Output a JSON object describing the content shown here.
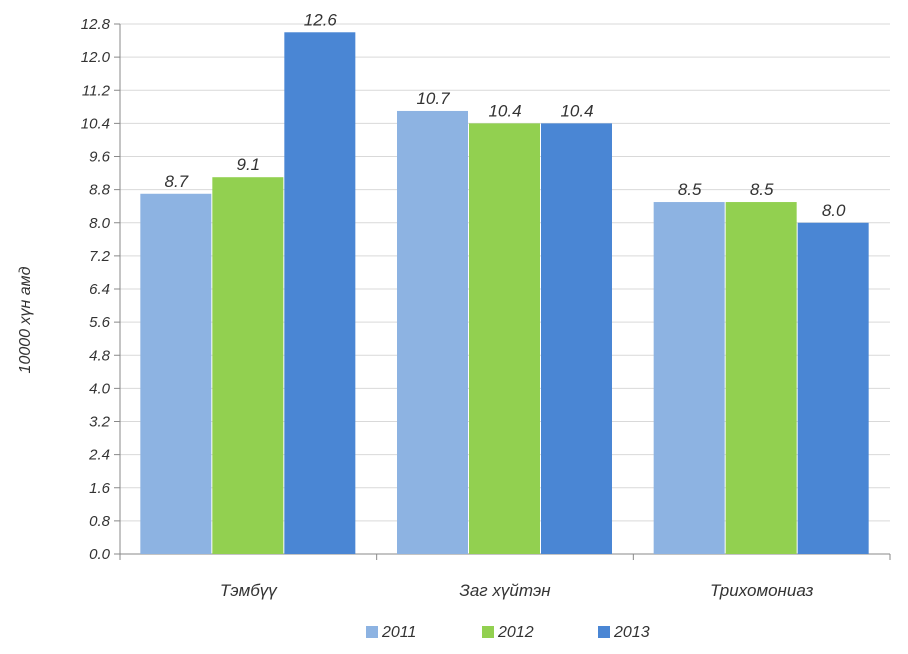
{
  "chart_data": {
    "type": "bar",
    "title": "",
    "xlabel": "",
    "ylabel": "10000 хүн амд",
    "ylim": [
      0,
      12.8
    ],
    "yticks": [
      "0.0",
      "0.8",
      "1.6",
      "2.4",
      "3.2",
      "4.0",
      "4.8",
      "5.6",
      "6.4",
      "7.2",
      "8.0",
      "8.8",
      "9.6",
      "10.4",
      "11.2",
      "12.0",
      "12.8"
    ],
    "grid": true,
    "legend_position": "bottom",
    "categories": [
      "Тэмбүү",
      "Заг хүйтэн",
      "Трихомониаз"
    ],
    "series": [
      {
        "name": "2011",
        "color": "#8DB3E2",
        "values": [
          8.7,
          10.7,
          8.5
        ],
        "labels": [
          "8.7",
          "10.7",
          "8.5"
        ]
      },
      {
        "name": "2012",
        "color": "#92D050",
        "values": [
          9.1,
          10.4,
          8.5
        ],
        "labels": [
          "9.1",
          "10.4",
          "8.5"
        ]
      },
      {
        "name": "2013",
        "color": "#4A86D4",
        "values": [
          12.6,
          10.4,
          8.0
        ],
        "labels": [
          "12.6",
          "10.4",
          "8.0"
        ]
      }
    ]
  }
}
